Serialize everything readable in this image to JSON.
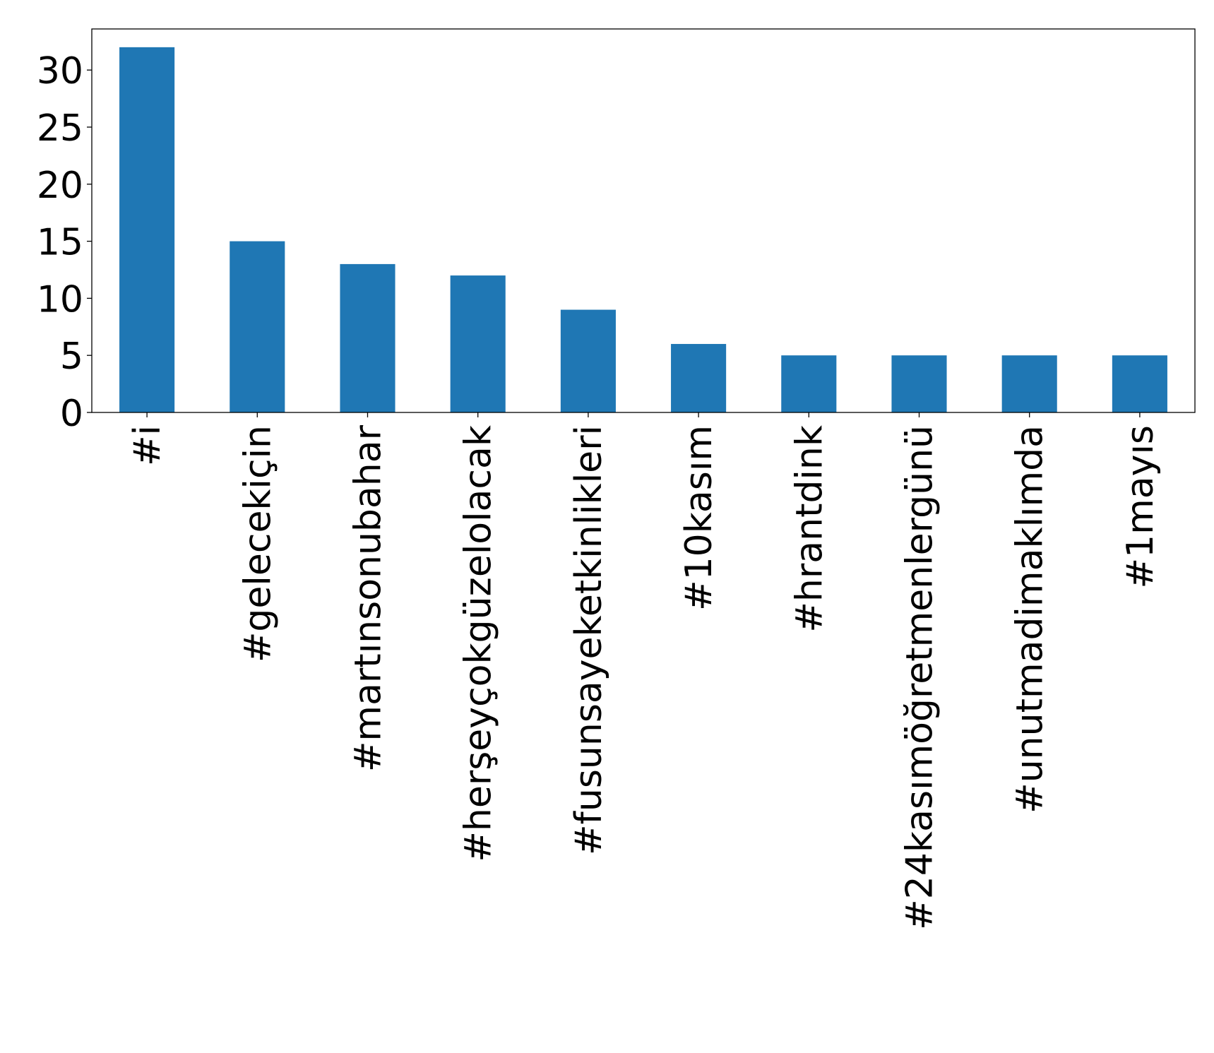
{
  "chart_data": {
    "type": "bar",
    "title": "",
    "xlabel": "",
    "ylabel": "",
    "categories": [
      "#i",
      "#gelecekiçin",
      "#martınsonubahar",
      "#herşeyçokgüzelolacak",
      "#fusunsayeketkinlikleri",
      "#10kasım",
      "#hrantdink",
      "#24kasımöğretmenlergünü",
      "#unutmadimaklımda",
      "#1mayıs"
    ],
    "values": [
      32,
      15,
      13,
      12,
      9,
      6,
      5,
      5,
      5,
      5
    ],
    "ylim": [
      0,
      33.6
    ],
    "yticks": [
      0,
      5,
      10,
      15,
      20,
      25,
      30
    ],
    "bar_color": "#1f77b4",
    "grid": false,
    "legend": "none",
    "xtick_rotation": "vertical"
  }
}
